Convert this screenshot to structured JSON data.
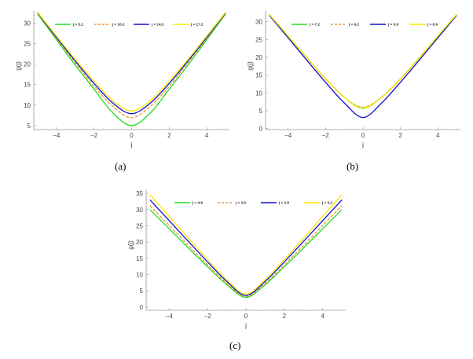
{
  "chart_data": [
    {
      "type": "line",
      "caption": "(a)",
      "xlabel": "j",
      "ylabel": "g(j)",
      "xlim": [
        -5.2,
        5.2
      ],
      "ylim": [
        4,
        33
      ],
      "xticks": [
        -4,
        -2,
        0,
        2,
        4
      ],
      "xtick_labels": [
        "−4",
        "−2",
        "0",
        "2",
        "4"
      ],
      "yticks": [
        5,
        10,
        15,
        20,
        25,
        30
      ],
      "ytick_labels": [
        "5",
        "10",
        "15",
        "20",
        "25",
        "30"
      ],
      "legend": "top",
      "grid": false,
      "series": [
        {
          "name": "j = 5.2",
          "color": "#22dd22",
          "dash": false,
          "x": [
            -5,
            -4,
            -3,
            -2,
            -1,
            0,
            1,
            2,
            3,
            4,
            5
          ],
          "y": [
            32.3,
            26.0,
            19.8,
            13.9,
            8.1,
            5.0,
            8.1,
            13.9,
            19.8,
            26.0,
            32.3
          ]
        },
        {
          "name": "j = 10.2",
          "color": "#e8963c",
          "dash": true,
          "x": [
            -5,
            -4,
            -3,
            -2,
            -1,
            0,
            1,
            2,
            3,
            4,
            5
          ],
          "y": [
            32.5,
            26.4,
            20.4,
            14.6,
            9.7,
            6.9,
            9.7,
            14.6,
            20.4,
            26.4,
            32.5
          ]
        },
        {
          "name": "j = 14.2",
          "color": "#1010cc",
          "dash": false,
          "x": [
            -5,
            -4,
            -3,
            -2,
            -1,
            0,
            1,
            2,
            3,
            4,
            5
          ],
          "y": [
            32.6,
            26.6,
            20.8,
            15.3,
            10.5,
            7.9,
            10.5,
            15.3,
            20.8,
            26.6,
            32.6
          ]
        },
        {
          "name": "j = 17.2",
          "color": "#ffe600",
          "dash": false,
          "x": [
            -5,
            -4,
            -3,
            -2,
            -1,
            0,
            1,
            2,
            3,
            4,
            5
          ],
          "y": [
            32.7,
            26.9,
            21.2,
            15.9,
            11.1,
            8.6,
            11.1,
            15.9,
            21.2,
            26.9,
            32.7
          ]
        }
      ]
    },
    {
      "type": "line",
      "caption": "(b)",
      "xlabel": "j",
      "ylabel": "g(j)",
      "xlim": [
        -5.2,
        5.2
      ],
      "ylim": [
        -0.3,
        33
      ],
      "xticks": [
        -4,
        -2,
        0,
        2,
        4
      ],
      "xtick_labels": [
        "−4",
        "−2",
        "0",
        "2",
        "4"
      ],
      "yticks": [
        0,
        5,
        10,
        15,
        20,
        25,
        30
      ],
      "ytick_labels": [
        "0",
        "5",
        "10",
        "15",
        "20",
        "25",
        "30"
      ],
      "legend": "top",
      "grid": false,
      "series": [
        {
          "name": "j = 7.2",
          "color": "#22dd22",
          "dash": false,
          "x": [
            -5,
            -4,
            -3,
            -2,
            -1,
            0,
            1,
            2,
            3,
            4,
            5
          ],
          "y": [
            32.0,
            26.0,
            19.9,
            14.0,
            8.8,
            5.7,
            8.8,
            14.0,
            19.9,
            26.0,
            32.0
          ]
        },
        {
          "name": "j = 6.2",
          "color": "#e8963c",
          "dash": true,
          "x": [
            -5,
            -4,
            -3,
            -2,
            -1,
            0,
            1,
            2,
            3,
            4,
            5
          ],
          "y": [
            32.0,
            25.9,
            19.8,
            13.9,
            8.8,
            6.0,
            8.8,
            13.9,
            19.8,
            25.9,
            32.0
          ]
        },
        {
          "name": "j = 0.9",
          "color": "#1010cc",
          "dash": false,
          "x": [
            -5,
            -4,
            -3,
            -2,
            -1,
            0,
            1,
            2,
            3,
            4,
            5
          ],
          "y": [
            31.8,
            25.5,
            19.2,
            13.0,
            7.2,
            3.1,
            7.2,
            13.0,
            19.2,
            25.5,
            31.8
          ]
        },
        {
          "name": "j = 6.9",
          "color": "#ffe600",
          "dash": false,
          "x": [
            -5,
            -4,
            -3,
            -2,
            -1,
            0,
            1,
            2,
            3,
            4,
            5
          ],
          "y": [
            32.0,
            26.0,
            19.9,
            14.0,
            8.8,
            5.8,
            8.8,
            14.0,
            19.9,
            26.0,
            32.0
          ]
        }
      ]
    },
    {
      "type": "line",
      "caption": "(c)",
      "xlabel": "j",
      "ylabel": "g(j)",
      "xlim": [
        -5.2,
        5.2
      ],
      "ylim": [
        -1,
        36
      ],
      "xticks": [
        -4,
        -2,
        0,
        2,
        4
      ],
      "xtick_labels": [
        "−4",
        "−2",
        "0",
        "2",
        "4"
      ],
      "yticks": [
        0,
        5,
        10,
        15,
        20,
        25,
        30,
        35
      ],
      "ytick_labels": [
        "0",
        "5",
        "10",
        "15",
        "20",
        "25",
        "30",
        "35"
      ],
      "legend": "top",
      "grid": false,
      "series": [
        {
          "name": "j = 4.9",
          "color": "#22dd22",
          "dash": false,
          "x": [
            -5,
            -4,
            -3,
            -2,
            -1,
            0,
            1,
            2,
            3,
            4,
            5
          ],
          "y": [
            30.0,
            24.1,
            18.2,
            12.4,
            6.9,
            3.0,
            6.9,
            12.4,
            18.2,
            24.1,
            30.0
          ]
        },
        {
          "name": "j = 3.9",
          "color": "#e8963c",
          "dash": true,
          "x": [
            -5,
            -4,
            -3,
            -2,
            -1,
            0,
            1,
            2,
            3,
            4,
            5
          ],
          "y": [
            31.2,
            25.1,
            19.0,
            13.0,
            7.3,
            3.3,
            7.3,
            13.0,
            19.0,
            25.1,
            31.2
          ]
        },
        {
          "name": "j = 2.9",
          "color": "#1010cc",
          "dash": false,
          "x": [
            -5,
            -4,
            -3,
            -2,
            -1,
            0,
            1,
            2,
            3,
            4,
            5
          ],
          "y": [
            33.0,
            26.6,
            20.2,
            13.9,
            7.9,
            3.6,
            7.9,
            13.9,
            20.2,
            26.6,
            33.0
          ]
        },
        {
          "name": "j = 3.2",
          "color": "#ffe600",
          "dash": false,
          "x": [
            -5,
            -4,
            -3,
            -2,
            -1,
            0,
            1,
            2,
            3,
            4,
            5
          ],
          "y": [
            34.6,
            27.9,
            21.2,
            14.6,
            8.4,
            4.0,
            8.4,
            14.6,
            21.2,
            27.9,
            34.6
          ]
        }
      ]
    }
  ]
}
